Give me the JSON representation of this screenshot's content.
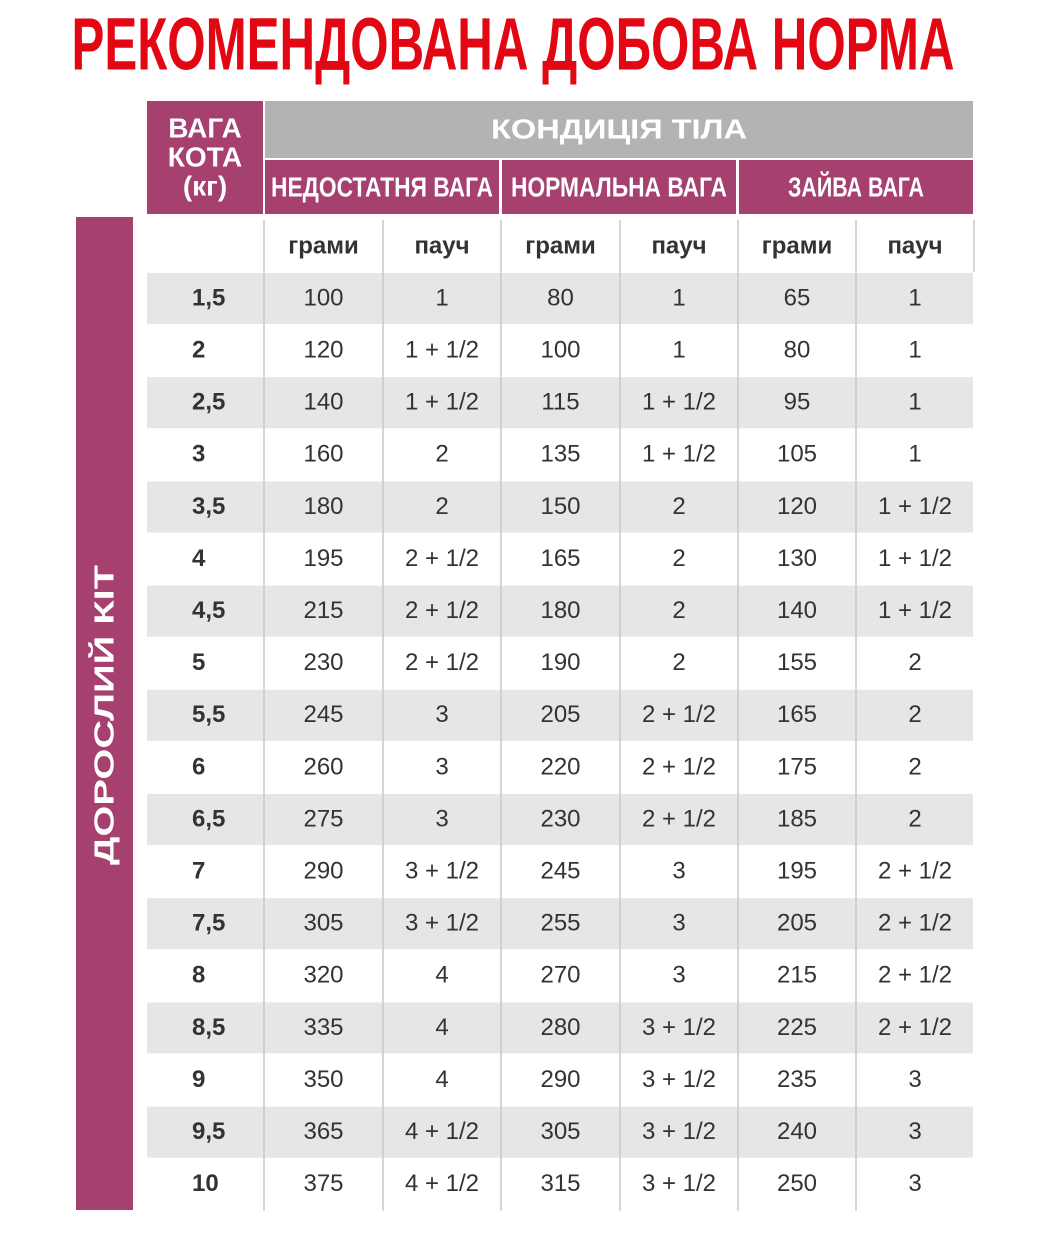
{
  "title": "РЕКОМЕНДОВАНА ДОБОВА НОРМА",
  "side_label": "ДОРОСЛИЙ КІТ",
  "header": {
    "weight": [
      "ВАГА",
      "КОТА",
      "(кг)"
    ],
    "condition": "КОНДИЦІЯ ТІЛА",
    "groups": [
      "НЕДОСТАТНЯ ВАГА",
      "НОРМАЛЬНА ВАГА",
      "ЗАЙВА ВАГА"
    ],
    "subheaders": [
      "грами",
      "пауч",
      "грами",
      "пауч",
      "грами",
      "пауч"
    ]
  },
  "table": {
    "rows": [
      [
        "1,5",
        100,
        1,
        80,
        1,
        65,
        1
      ],
      [
        "2",
        120,
        "1 + 1/2",
        100,
        1,
        80,
        1
      ],
      [
        "2,5",
        140,
        "1 + 1/2",
        115,
        "1 + 1/2",
        95,
        1
      ],
      [
        "3",
        160,
        2,
        135,
        "1 + 1/2",
        105,
        1
      ],
      [
        "3,5",
        180,
        2,
        150,
        2,
        120,
        "1 + 1/2"
      ],
      [
        "4",
        195,
        "2 + 1/2",
        165,
        2,
        130,
        "1 + 1/2"
      ],
      [
        "4,5",
        215,
        "2 + 1/2",
        180,
        2,
        140,
        "1 + 1/2"
      ],
      [
        "5",
        230,
        "2 + 1/2",
        190,
        2,
        155,
        2
      ],
      [
        "5,5",
        245,
        3,
        205,
        "2 + 1/2",
        165,
        2
      ],
      [
        "6",
        260,
        3,
        220,
        "2 + 1/2",
        175,
        2
      ],
      [
        "6,5",
        275,
        3,
        230,
        "2 + 1/2",
        185,
        2
      ],
      [
        "7",
        290,
        "3 + 1/2",
        245,
        3,
        195,
        "2 + 1/2"
      ],
      [
        "7,5",
        305,
        "3 + 1/2",
        255,
        3,
        205,
        "2 + 1/2"
      ],
      [
        "8",
        320,
        4,
        270,
        3,
        215,
        "2 + 1/2"
      ],
      [
        "8,5",
        335,
        4,
        280,
        "3 + 1/2",
        225,
        "2 + 1/2"
      ],
      [
        "9",
        350,
        4,
        290,
        "3 + 1/2",
        235,
        3
      ],
      [
        "9,5",
        365,
        "4 + 1/2",
        305,
        "3 + 1/2",
        240,
        3
      ],
      [
        "10",
        375,
        "4 + 1/2",
        315,
        "3 + 1/2",
        250,
        3
      ]
    ]
  }
}
